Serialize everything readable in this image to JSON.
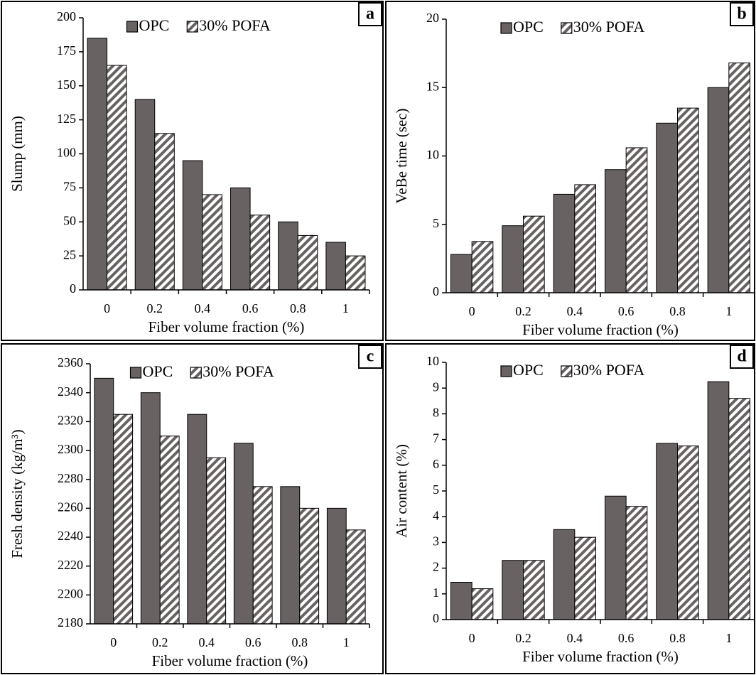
{
  "chart_data": [
    {
      "type": "bar",
      "panel_label": "a",
      "ylabel": "Slump (mm)",
      "xlabel": "Fiber volume fraction (%)",
      "categories": [
        "0",
        "0.2",
        "0.4",
        "0.6",
        "0.8",
        "1"
      ],
      "series": [
        {
          "name": "OPC",
          "color": "#696262",
          "values": [
            185,
            140,
            95,
            75,
            50,
            35
          ]
        },
        {
          "name": "30% POFA",
          "color": "#696262",
          "hatch": true,
          "values": [
            165,
            115,
            70,
            55,
            40,
            25
          ]
        }
      ],
      "ylim": [
        0,
        200
      ],
      "yticks": [
        0,
        25,
        50,
        75,
        100,
        125,
        150,
        175,
        200
      ]
    },
    {
      "type": "bar",
      "panel_label": "b",
      "ylabel": "VeBe time (sec)",
      "xlabel": "Fiber volume fraction (%)",
      "categories": [
        "0",
        "0.2",
        "0.4",
        "0.6",
        "0.8",
        "1"
      ],
      "series": [
        {
          "name": "OPC",
          "color": "#696262",
          "values": [
            2.8,
            4.9,
            7.2,
            9.0,
            12.4,
            15.0
          ]
        },
        {
          "name": "30% POFA",
          "color": "#696262",
          "hatch": true,
          "values": [
            3.75,
            5.6,
            7.9,
            10.6,
            13.5,
            16.8
          ]
        }
      ],
      "ylim": [
        0,
        20
      ],
      "yticks": [
        0,
        5,
        10,
        15,
        20
      ]
    },
    {
      "type": "bar",
      "panel_label": "c",
      "ylabel": "Fresh density (kg/m³)",
      "xlabel": "Fiber volume fraction (%)",
      "categories": [
        "0",
        "0.2",
        "0.4",
        "0.6",
        "0.8",
        "1"
      ],
      "series": [
        {
          "name": "OPC",
          "color": "#696262",
          "values": [
            2350,
            2340,
            2325,
            2305,
            2275,
            2260
          ]
        },
        {
          "name": "30% POFA",
          "color": "#696262",
          "hatch": true,
          "values": [
            2325,
            2310,
            2295,
            2275,
            2260,
            2245
          ]
        }
      ],
      "ylim": [
        2180,
        2360
      ],
      "yticks": [
        2180,
        2200,
        2220,
        2240,
        2260,
        2280,
        2300,
        2320,
        2340,
        2360
      ]
    },
    {
      "type": "bar",
      "panel_label": "d",
      "ylabel": "Air content (%)",
      "xlabel": "Fiber volume fraction (%)",
      "categories": [
        "0",
        "0.2",
        "0.4",
        "0.6",
        "0.8",
        "1"
      ],
      "series": [
        {
          "name": "OPC",
          "color": "#696262",
          "values": [
            1.45,
            2.3,
            3.5,
            4.8,
            6.85,
            9.25
          ]
        },
        {
          "name": "30% POFA",
          "color": "#696262",
          "hatch": true,
          "values": [
            1.2,
            2.3,
            3.2,
            4.4,
            6.75,
            8.6
          ]
        }
      ],
      "ylim": [
        0,
        10
      ],
      "yticks": [
        0,
        1,
        2,
        3,
        4,
        5,
        6,
        7,
        8,
        9,
        10
      ]
    }
  ]
}
